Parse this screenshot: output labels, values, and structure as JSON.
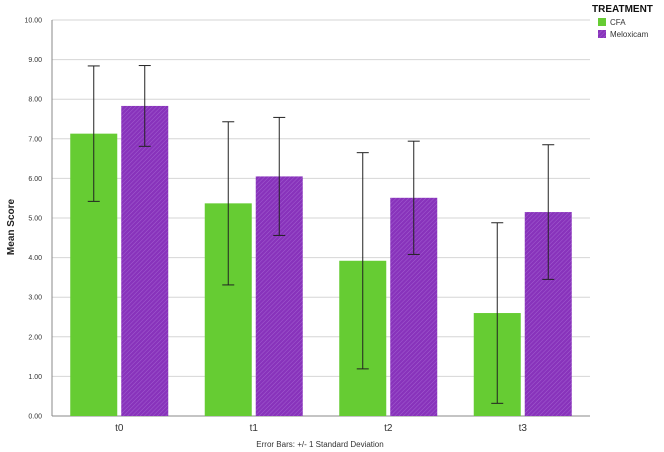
{
  "chart_data": {
    "type": "bar",
    "categories": [
      "t0",
      "t1",
      "t2",
      "t3"
    ],
    "series": [
      {
        "name": "CFA",
        "color": "#66cc33",
        "values": [
          7.13,
          5.37,
          3.92,
          2.6
        ],
        "sd": [
          1.71,
          2.06,
          2.73,
          2.28
        ]
      },
      {
        "name": "Meloxicam",
        "color": "#8833bb",
        "values": [
          7.83,
          6.05,
          5.51,
          5.15
        ],
        "sd": [
          1.02,
          1.49,
          1.43,
          1.7
        ]
      }
    ],
    "ylabel": "Mean Score",
    "xlabel": "",
    "ylim": [
      0,
      10
    ],
    "yticks": [
      "0.00",
      "1.00",
      "2.00",
      "3.00",
      "4.00",
      "5.00",
      "6.00",
      "7.00",
      "8.00",
      "9.00",
      "10.00"
    ],
    "legend_title": "TREATMENT",
    "legend_position": "top-right",
    "grid": true,
    "footnote": "Error Bars: +/- 1 Standard Deviation"
  }
}
